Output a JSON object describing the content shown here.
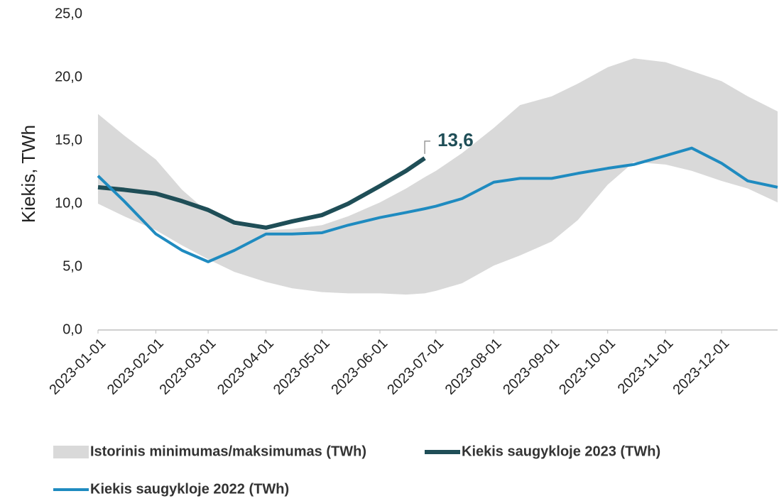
{
  "chart_data": {
    "type": "line",
    "y_label": "Kiekis, TWh",
    "x": [
      "2023-01-01",
      "2023-01-15",
      "2023-02-01",
      "2023-02-15",
      "2023-03-01",
      "2023-03-15",
      "2023-04-01",
      "2023-04-15",
      "2023-05-01",
      "2023-05-15",
      "2023-06-01",
      "2023-06-15",
      "2023-06-25",
      "2023-07-01",
      "2023-07-15",
      "2023-08-01",
      "2023-08-15",
      "2023-09-01",
      "2023-09-15",
      "2023-10-01",
      "2023-10-15",
      "2023-11-01",
      "2023-11-15",
      "2023-12-01",
      "2023-12-15",
      "2023-12-31"
    ],
    "series": [
      {
        "name": "Istorinis minimumas/maksimumas (TWh)",
        "type": "band",
        "color": "#d9d9d9",
        "values_min": [
          10.0,
          9.0,
          7.9,
          6.7,
          5.6,
          4.6,
          3.8,
          3.3,
          3.0,
          2.9,
          2.9,
          2.8,
          2.9,
          3.1,
          3.7,
          5.1,
          5.9,
          7.0,
          8.7,
          11.5,
          13.3,
          13.1,
          12.6,
          11.8,
          11.2,
          10.1
        ],
        "values_max": [
          17.1,
          15.4,
          13.5,
          11.1,
          9.3,
          8.3,
          7.9,
          8.0,
          8.3,
          9.0,
          10.1,
          11.2,
          12.1,
          12.6,
          14.0,
          16.0,
          17.8,
          18.5,
          19.5,
          20.8,
          21.5,
          21.2,
          20.5,
          19.7,
          18.5,
          17.3
        ]
      },
      {
        "name": "Kiekis saugykloje 2023 (TWh)",
        "color": "#1f4e57",
        "values": [
          11.3,
          11.1,
          10.8,
          10.2,
          9.5,
          8.5,
          8.1,
          8.6,
          9.1,
          10.0,
          11.4,
          12.6,
          13.6,
          null,
          null,
          null,
          null,
          null,
          null,
          null,
          null,
          null,
          null,
          null,
          null,
          null
        ],
        "value_labels": [
          null,
          null,
          null,
          null,
          null,
          null,
          null,
          null,
          null,
          null,
          null,
          null,
          "13,6",
          null,
          null,
          null,
          null,
          null,
          null,
          null,
          null,
          null,
          null,
          null,
          null,
          null
        ]
      },
      {
        "name": "Kiekis saugykloje 2022 (TWh)",
        "color": "#1f8bc0",
        "values": [
          12.2,
          10.2,
          7.6,
          6.3,
          5.4,
          6.3,
          7.6,
          7.6,
          7.7,
          8.3,
          8.9,
          9.3,
          9.6,
          9.8,
          10.4,
          11.7,
          12.0,
          12.0,
          12.4,
          12.8,
          13.1,
          13.8,
          14.4,
          13.2,
          11.8,
          11.3
        ]
      }
    ],
    "xlim": [
      "2023-01-01",
      "2023-12-31"
    ],
    "xticks": [
      "2023-01-01",
      "2023-02-01",
      "2023-03-01",
      "2023-04-01",
      "2023-05-01",
      "2023-06-01",
      "2023-07-01",
      "2023-08-01",
      "2023-09-01",
      "2023-10-01",
      "2023-11-01",
      "2023-12-01"
    ],
    "ylim": [
      0,
      25
    ],
    "yticks": [
      {
        "value": 0,
        "label": "0,0"
      },
      {
        "value": 5,
        "label": "5,0"
      },
      {
        "value": 10,
        "label": "10,0"
      },
      {
        "value": 15,
        "label": "15,0"
      },
      {
        "value": 20,
        "label": "20,0"
      },
      {
        "value": 25,
        "label": "25,0"
      }
    ],
    "grid": false,
    "legend": "bottom"
  }
}
